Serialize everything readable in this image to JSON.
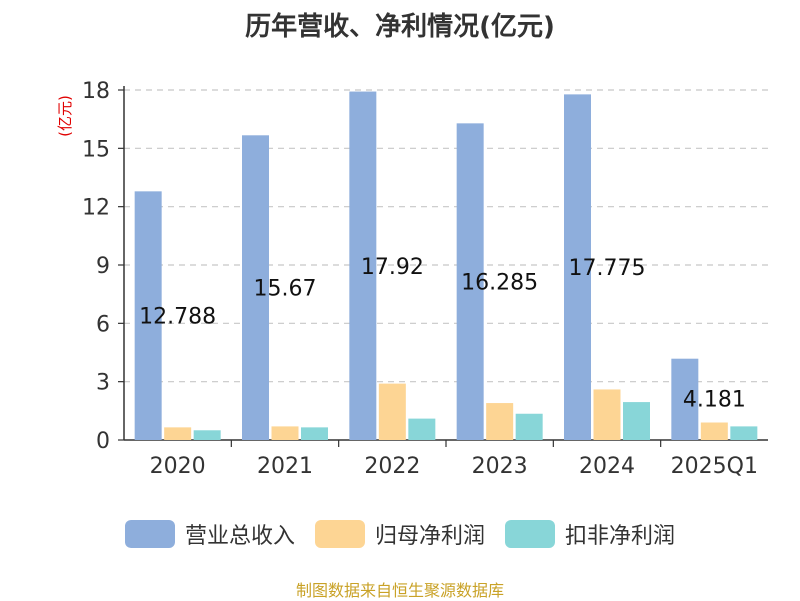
{
  "title": "历年营收、净利情况(亿元)",
  "source": "制图数据来自恒生聚源数据库",
  "chart_data": {
    "type": "bar",
    "categories": [
      "2020",
      "2021",
      "2022",
      "2023",
      "2024",
      "2025Q1"
    ],
    "ylabel": "(亿元)",
    "ylim": [
      0,
      18
    ],
    "yticks": [
      0,
      3,
      6,
      9,
      12,
      15,
      18
    ],
    "grid": true,
    "legend_position": "bottom",
    "series": [
      {
        "name": "营业总收入",
        "color": "#8eaedc",
        "values": [
          12.788,
          15.67,
          17.92,
          16.285,
          17.775,
          4.181
        ],
        "data_labels": [
          "12.788",
          "15.67",
          "17.92",
          "16.285",
          "17.775",
          "4.181"
        ]
      },
      {
        "name": "归母净利润",
        "color": "#fdd594",
        "values": [
          0.65,
          0.7,
          2.9,
          1.9,
          2.6,
          0.9
        ]
      },
      {
        "name": "扣非净利润",
        "color": "#88d6d8",
        "values": [
          0.5,
          0.65,
          1.1,
          1.35,
          1.95,
          0.7
        ]
      }
    ]
  }
}
